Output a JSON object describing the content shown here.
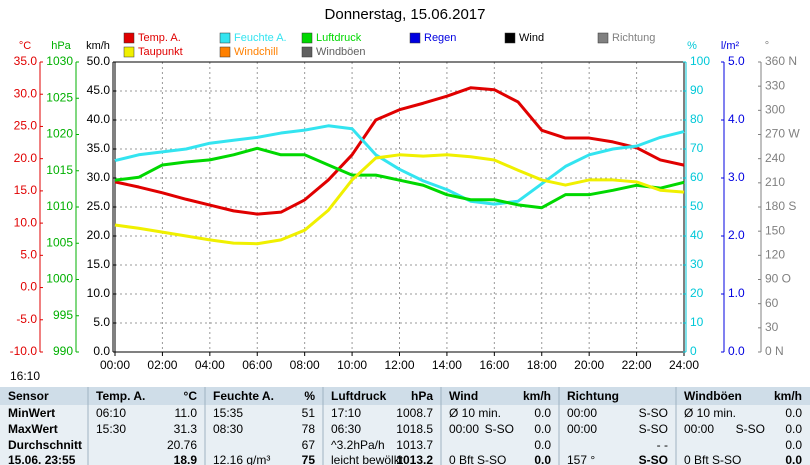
{
  "chart_data": {
    "type": "line",
    "title": "Donnerstag, 15.06.2017",
    "annotation": "16:10",
    "grid": true,
    "x": [
      0,
      1,
      2,
      3,
      4,
      5,
      6,
      7,
      8,
      9,
      10,
      11,
      12,
      13,
      14,
      15,
      16,
      17,
      18,
      19,
      20,
      21,
      22,
      23,
      24
    ],
    "xlim": [
      0,
      24
    ],
    "xticks": [
      {
        "value": 0,
        "label": "00:00"
      },
      {
        "value": 2,
        "label": "02:00"
      },
      {
        "value": 4,
        "label": "04:00"
      },
      {
        "value": 6,
        "label": "06:00"
      },
      {
        "value": 8,
        "label": "08:00"
      },
      {
        "value": 10,
        "label": "10:00"
      },
      {
        "value": 12,
        "label": "12:00"
      },
      {
        "value": 14,
        "label": "14:00"
      },
      {
        "value": 16,
        "label": "16:00"
      },
      {
        "value": 18,
        "label": "18:00"
      },
      {
        "value": 20,
        "label": "20:00"
      },
      {
        "value": 22,
        "label": "22:00"
      },
      {
        "value": 24,
        "label": "24:00"
      }
    ],
    "axes": {
      "y": {
        "title": "°C",
        "color": "#e00000",
        "side": "left",
        "lim": [
          -10,
          35
        ],
        "ticks": [
          {
            "value": -10,
            "label": "-10.0"
          },
          {
            "value": -5,
            "label": "-5.0"
          },
          {
            "value": 0,
            "label": "0.0"
          },
          {
            "value": 5,
            "label": "5.0"
          },
          {
            "value": 10,
            "label": "10.0"
          },
          {
            "value": 15,
            "label": "15.0"
          },
          {
            "value": 20,
            "label": "20.0"
          },
          {
            "value": 25,
            "label": "25.0"
          },
          {
            "value": 30,
            "label": "30.0"
          },
          {
            "value": 35,
            "label": "35.0"
          }
        ]
      },
      "y3": {
        "title": "hPa",
        "color": "#00b000",
        "side": "left",
        "lim": [
          990,
          1030
        ],
        "ticks": [
          990,
          995,
          1000,
          1005,
          1010,
          1015,
          1020,
          1025,
          1030
        ]
      },
      "y4": {
        "title": "km/h",
        "color": "#000000",
        "side": "left",
        "lim": [
          0,
          50
        ],
        "ticks": [
          {
            "value": 0,
            "label": "0.0"
          },
          {
            "value": 5,
            "label": "5.0"
          },
          {
            "value": 10,
            "label": "10.0"
          },
          {
            "value": 15,
            "label": "15.0"
          },
          {
            "value": 20,
            "label": "20.0"
          },
          {
            "value": 25,
            "label": "25.0"
          },
          {
            "value": 30,
            "label": "30.0"
          },
          {
            "value": 35,
            "label": "35.0"
          },
          {
            "value": 40,
            "label": "40.0"
          },
          {
            "value": 45,
            "label": "45.0"
          },
          {
            "value": 50,
            "label": "50.0"
          }
        ]
      },
      "y2": {
        "title": "%",
        "color": "#00c8d8",
        "side": "right",
        "lim": [
          0,
          100
        ],
        "ticks": [
          0,
          10,
          20,
          30,
          40,
          50,
          60,
          70,
          80,
          90,
          100
        ]
      },
      "y5": {
        "title": "l/m²",
        "color": "#0000e0",
        "side": "right",
        "lim": [
          0,
          5
        ],
        "ticks": [
          {
            "value": 0,
            "label": "0.0"
          },
          {
            "value": 1,
            "label": "1.0"
          },
          {
            "value": 2,
            "label": "2.0"
          },
          {
            "value": 3,
            "label": "3.0"
          },
          {
            "value": 4,
            "label": "4.0"
          },
          {
            "value": 5,
            "label": "5.0"
          }
        ]
      },
      "y6": {
        "title": "°",
        "color": "#808080",
        "side": "right",
        "lim": [
          0,
          360
        ],
        "ticks": [
          {
            "value": 0,
            "label": "0 N"
          },
          30,
          60,
          {
            "value": 90,
            "label": "90 O"
          },
          120,
          150,
          {
            "value": 180,
            "label": "180 S"
          },
          210,
          240,
          {
            "value": 270,
            "label": "270 W"
          },
          300,
          330,
          {
            "value": 360,
            "label": "360 N"
          }
        ]
      }
    },
    "series": [
      {
        "name": "Temp. A.",
        "color": "#e00000",
        "axis": "y",
        "values": [
          16.4,
          15.6,
          14.7,
          13.7,
          12.8,
          11.9,
          11.4,
          11.7,
          13.6,
          16.7,
          20.6,
          26.0,
          27.6,
          28.6,
          29.7,
          31.0,
          30.7,
          28.8,
          24.4,
          23.2,
          23.2,
          22.6,
          21.7,
          19.8,
          19.0
        ]
      },
      {
        "name": "Feuchte A.",
        "color": "#33e4f0",
        "axis": "y2",
        "values": [
          66,
          68,
          69,
          70,
          72,
          73,
          74,
          75.5,
          76.5,
          78,
          77,
          68,
          63,
          59,
          56,
          52,
          51,
          52,
          58,
          64,
          68,
          70,
          71,
          74,
          76
        ]
      },
      {
        "name": "Luftdruck",
        "color": "#00d800",
        "axis": "y3",
        "values": [
          1013.7,
          1014.1,
          1015.8,
          1016.2,
          1016.5,
          1017.2,
          1018.1,
          1017.2,
          1017.2,
          1015.8,
          1014.4,
          1014.4,
          1013.7,
          1013.0,
          1011.7,
          1011.0,
          1011.0,
          1010.3,
          1009.9,
          1011.7,
          1011.7,
          1012.3,
          1013.0,
          1012.6,
          1013.4
        ]
      },
      {
        "name": "Taupunkt",
        "color": "#f0f000",
        "axis": "y",
        "values": [
          9.7,
          9.2,
          8.6,
          8.0,
          7.4,
          6.9,
          6.8,
          7.4,
          8.9,
          12.0,
          16.7,
          20.1,
          20.6,
          20.4,
          20.6,
          20.3,
          19.8,
          18.2,
          16.7,
          15.9,
          16.7,
          16.7,
          16.4,
          15.1,
          14.8
        ]
      }
    ],
    "legend_extra": [
      {
        "name": "Regen",
        "color": "#0000e0"
      },
      {
        "name": "Wind",
        "color": "#000000"
      },
      {
        "name": "Richtung",
        "color": "#808080"
      },
      {
        "name": "Windchill",
        "color": "#ff8000"
      },
      {
        "name": "Windböen",
        "color": "#606060"
      }
    ]
  },
  "table": {
    "columns": [
      {
        "title": "Sensor"
      },
      {
        "title": "Temp. A.",
        "unit": "°C"
      },
      {
        "title": "Feuchte A.",
        "unit": "%"
      },
      {
        "title": "Luftdruck",
        "unit": "hPa"
      },
      {
        "title": "Wind",
        "unit": "km/h"
      },
      {
        "title": "Richtung"
      },
      {
        "title": "Windböen",
        "unit": "km/h"
      }
    ],
    "rows": [
      {
        "label": "MinWert",
        "cells": [
          {
            "left": "06:10",
            "right": "11.0"
          },
          {
            "left": "15:35",
            "right": "51"
          },
          {
            "left": "17:10",
            "right": "1008.7"
          },
          {
            "left": "Ø 10 min.",
            "right": "0.0"
          },
          {
            "left": "00:00",
            "right": "S-SO"
          },
          {
            "left": "Ø 10 min.",
            "right": "0.0"
          }
        ]
      },
      {
        "label": "MaxWert",
        "cells": [
          {
            "left": "15:30",
            "right": "31.3"
          },
          {
            "left": "08:30",
            "right": "78"
          },
          {
            "left": "06:30",
            "right": "1018.5"
          },
          {
            "left": "00:00",
            "mid": "S-SO",
            "right": "0.0"
          },
          {
            "left": "00:00",
            "right": "S-SO"
          },
          {
            "left": "00:00",
            "mid": "S-SO",
            "right": "0.0"
          }
        ]
      },
      {
        "label": "Durchschnitt",
        "cells": [
          {
            "right": "20.76"
          },
          {
            "right": "67"
          },
          {
            "left": "^3.2hPa/h",
            "right": "1013.7"
          },
          {
            "right": "0.0"
          },
          {
            "right": "- -"
          },
          {
            "right": "0.0"
          }
        ]
      },
      {
        "label": "15.06. 23:55",
        "cells": [
          {
            "right": "18.9"
          },
          {
            "left": "12.16 g/m³",
            "right": "75"
          },
          {
            "left": "leicht bewölkt",
            "right": "1013.2"
          },
          {
            "left": "0 Bft S-SO",
            "right": "0.0"
          },
          {
            "left": "157 °",
            "right": "S-SO"
          },
          {
            "left": "0 Bft S-SO",
            "right": "0.0"
          }
        ]
      }
    ]
  }
}
